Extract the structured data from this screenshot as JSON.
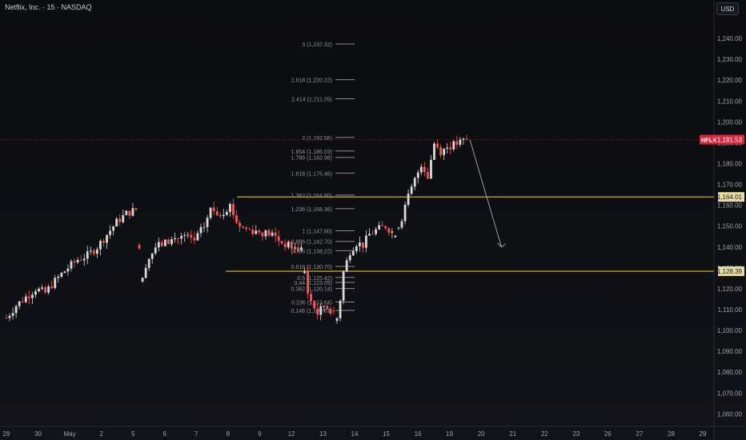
{
  "header": {
    "title": "Netflix, Inc. · 15 · NASDAQ",
    "currency": "USD"
  },
  "colors": {
    "up": "#d9d9d9",
    "down": "#ff5252",
    "level": "#a08a1e",
    "fib": "#8c8c8c",
    "axis_text": "#a0a3aa",
    "tag_symbol": "#d7263d"
  },
  "chart_data": {
    "type": "candlestick",
    "title": "Netflix, Inc. · 15 · NASDAQ",
    "yaxis": {
      "ticks": [
        1060,
        1070,
        1080,
        1090,
        1100,
        1110,
        1120,
        1130,
        1140,
        1150,
        1160,
        1170,
        1180,
        1190,
        1200,
        1210,
        1220,
        1230,
        1240
      ],
      "tick_labels": [
        "1,060.00",
        "1,070.00",
        "1,080.00",
        "1,090.00",
        "1,100.00",
        "1,110.00",
        "1,120.00",
        "1,130.00",
        "1,140.00",
        "1,150.00",
        "1,160.00",
        "1,170.00",
        "1,180.00",
        "1,190.00",
        "1,200.00",
        "1,210.00",
        "1,220.00",
        "1,230.00",
        "1,240.00"
      ],
      "range": [
        1054,
        1250
      ]
    },
    "xaxis": {
      "labels": [
        "29",
        "30",
        "May",
        "2",
        "5",
        "6",
        "7",
        "8",
        "9",
        "12",
        "13",
        "14",
        "15",
        "16",
        "19",
        "20",
        "21",
        "22",
        "23",
        "26",
        "27",
        "28",
        "29"
      ]
    },
    "price_tags": [
      {
        "symbol": "NFLX",
        "value": 1191.53,
        "label": "1,191.53"
      },
      {
        "value": 1164.01,
        "label": "1,164.01"
      },
      {
        "value": 1128.39,
        "label": "1,128.39"
      }
    ],
    "horizontal_levels": [
      1164.01,
      1128.39
    ],
    "fib_levels": [
      {
        "ratio": "3",
        "price": 1237.32,
        "label": "3 (1,237.32)"
      },
      {
        "ratio": "2.618",
        "price": 1220.22,
        "label": "2.618 (1,220.22)"
      },
      {
        "ratio": "2.414",
        "price": 1211.09,
        "label": "2.414 (1,211.09)"
      },
      {
        "ratio": "2",
        "price": 1192.56,
        "label": "2 (1,192.56)"
      },
      {
        "ratio": "1.854",
        "price": 1186.03,
        "label": "1.854 (1,186.03)"
      },
      {
        "ratio": "1.786",
        "price": 1182.98,
        "label": "1.786 (1,182.98)"
      },
      {
        "ratio": "1.618",
        "price": 1175.46,
        "label": "1.618 (1,175.46)"
      },
      {
        "ratio": "1.382",
        "price": 1164.9,
        "label": "1.382 (1,164.90)"
      },
      {
        "ratio": "1.236",
        "price": 1158.36,
        "label": "1.236 (1,158.36)"
      },
      {
        "ratio": "1",
        "price": 1147.8,
        "label": "1 (1,147.80)"
      },
      {
        "ratio": "0.886",
        "price": 1142.7,
        "label": "0.886 (1,142.70)"
      },
      {
        "ratio": "0.786",
        "price": 1138.22,
        "label": "0.786 (1,138.22)"
      },
      {
        "ratio": "0.618",
        "price": 1130.7,
        "label": "0.618 (1,130.70)"
      },
      {
        "ratio": "0.5",
        "price": 1125.42,
        "label": "0.5 (1,125.42)"
      },
      {
        "ratio": "0.44",
        "price": 1123.05,
        "label": "0.44 (1,123.05)"
      },
      {
        "ratio": "0.382",
        "price": 1120.14,
        "label": "0.382 (1,120.14)"
      },
      {
        "ratio": "0.236",
        "price": 1113.64,
        "label": "0.236 (1,113.64)"
      },
      {
        "ratio": "0.146",
        "price": 1109.61,
        "label": "0.146 (1,109.61)"
      }
    ],
    "path_points": [
      [
        0,
        1106
      ],
      [
        3,
        1112
      ],
      [
        6,
        1116
      ],
      [
        9,
        1120
      ],
      [
        12,
        1118
      ],
      [
        14,
        1122
      ],
      [
        17,
        1127
      ],
      [
        19,
        1130
      ],
      [
        22,
        1134
      ],
      [
        25,
        1136
      ],
      [
        28,
        1140
      ],
      [
        31,
        1146
      ],
      [
        34,
        1152
      ],
      [
        37,
        1156
      ],
      [
        40,
        1158
      ],
      [
        42,
        1124
      ],
      [
        43,
        1132
      ],
      [
        46,
        1140
      ],
      [
        49,
        1142
      ],
      [
        52,
        1144
      ],
      [
        55,
        1145
      ],
      [
        58,
        1143
      ],
      [
        61,
        1150
      ],
      [
        63,
        1158
      ],
      [
        66,
        1156
      ],
      [
        69,
        1160
      ],
      [
        71,
        1152
      ],
      [
        73,
        1149
      ],
      [
        76,
        1148
      ],
      [
        79,
        1147
      ],
      [
        82,
        1146
      ],
      [
        85,
        1142
      ],
      [
        88,
        1140
      ],
      [
        91,
        1138
      ],
      [
        93,
        1118
      ],
      [
        94,
        1114
      ],
      [
        96,
        1108
      ],
      [
        98,
        1112
      ],
      [
        100,
        1110
      ],
      [
        102,
        1106
      ],
      [
        103,
        1115
      ],
      [
        104,
        1128
      ],
      [
        106,
        1138
      ],
      [
        108,
        1142
      ],
      [
        110,
        1141
      ],
      [
        112,
        1146
      ],
      [
        114,
        1148
      ],
      [
        117,
        1150
      ],
      [
        120,
        1146
      ],
      [
        122,
        1154
      ],
      [
        124,
        1164
      ],
      [
        126,
        1172
      ],
      [
        128,
        1180
      ],
      [
        130,
        1174
      ],
      [
        132,
        1190
      ],
      [
        134,
        1186
      ],
      [
        136,
        1188
      ],
      [
        138,
        1189
      ],
      [
        140,
        1190
      ],
      [
        142,
        1191.53
      ]
    ],
    "forecast_arrow": {
      "from": [
        142,
        1191.5
      ],
      "to": [
        152,
        1140
      ],
      "label": ""
    }
  }
}
